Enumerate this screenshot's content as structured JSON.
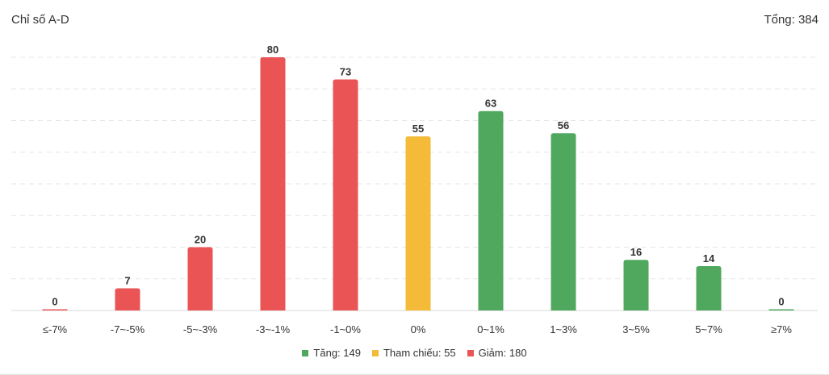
{
  "header": {
    "title": "Chỉ số A-D",
    "total": "Tổng: 384"
  },
  "colors": {
    "up": "#4fa85e",
    "ref": "#f3bb37",
    "down": "#ea5455"
  },
  "chart_data": {
    "type": "bar",
    "categories": [
      "≤-7%",
      "-7~-5%",
      "-5~-3%",
      "-3~-1%",
      "-1~0%",
      "0%",
      "0~1%",
      "1~3%",
      "3~5%",
      "5~7%",
      "≥7%"
    ],
    "values": [
      0,
      7,
      20,
      80,
      73,
      55,
      63,
      56,
      16,
      14,
      0
    ],
    "bar_groups": [
      "down",
      "down",
      "down",
      "down",
      "down",
      "ref",
      "up",
      "up",
      "up",
      "up",
      "up"
    ],
    "ylim": [
      0,
      80
    ],
    "grid": true,
    "legend": [
      {
        "key": "up",
        "label": "Tăng: 149"
      },
      {
        "key": "ref",
        "label": "Tham chiếu: 55"
      },
      {
        "key": "down",
        "label": "Giảm: 180"
      }
    ],
    "legend_position": "bottom"
  }
}
